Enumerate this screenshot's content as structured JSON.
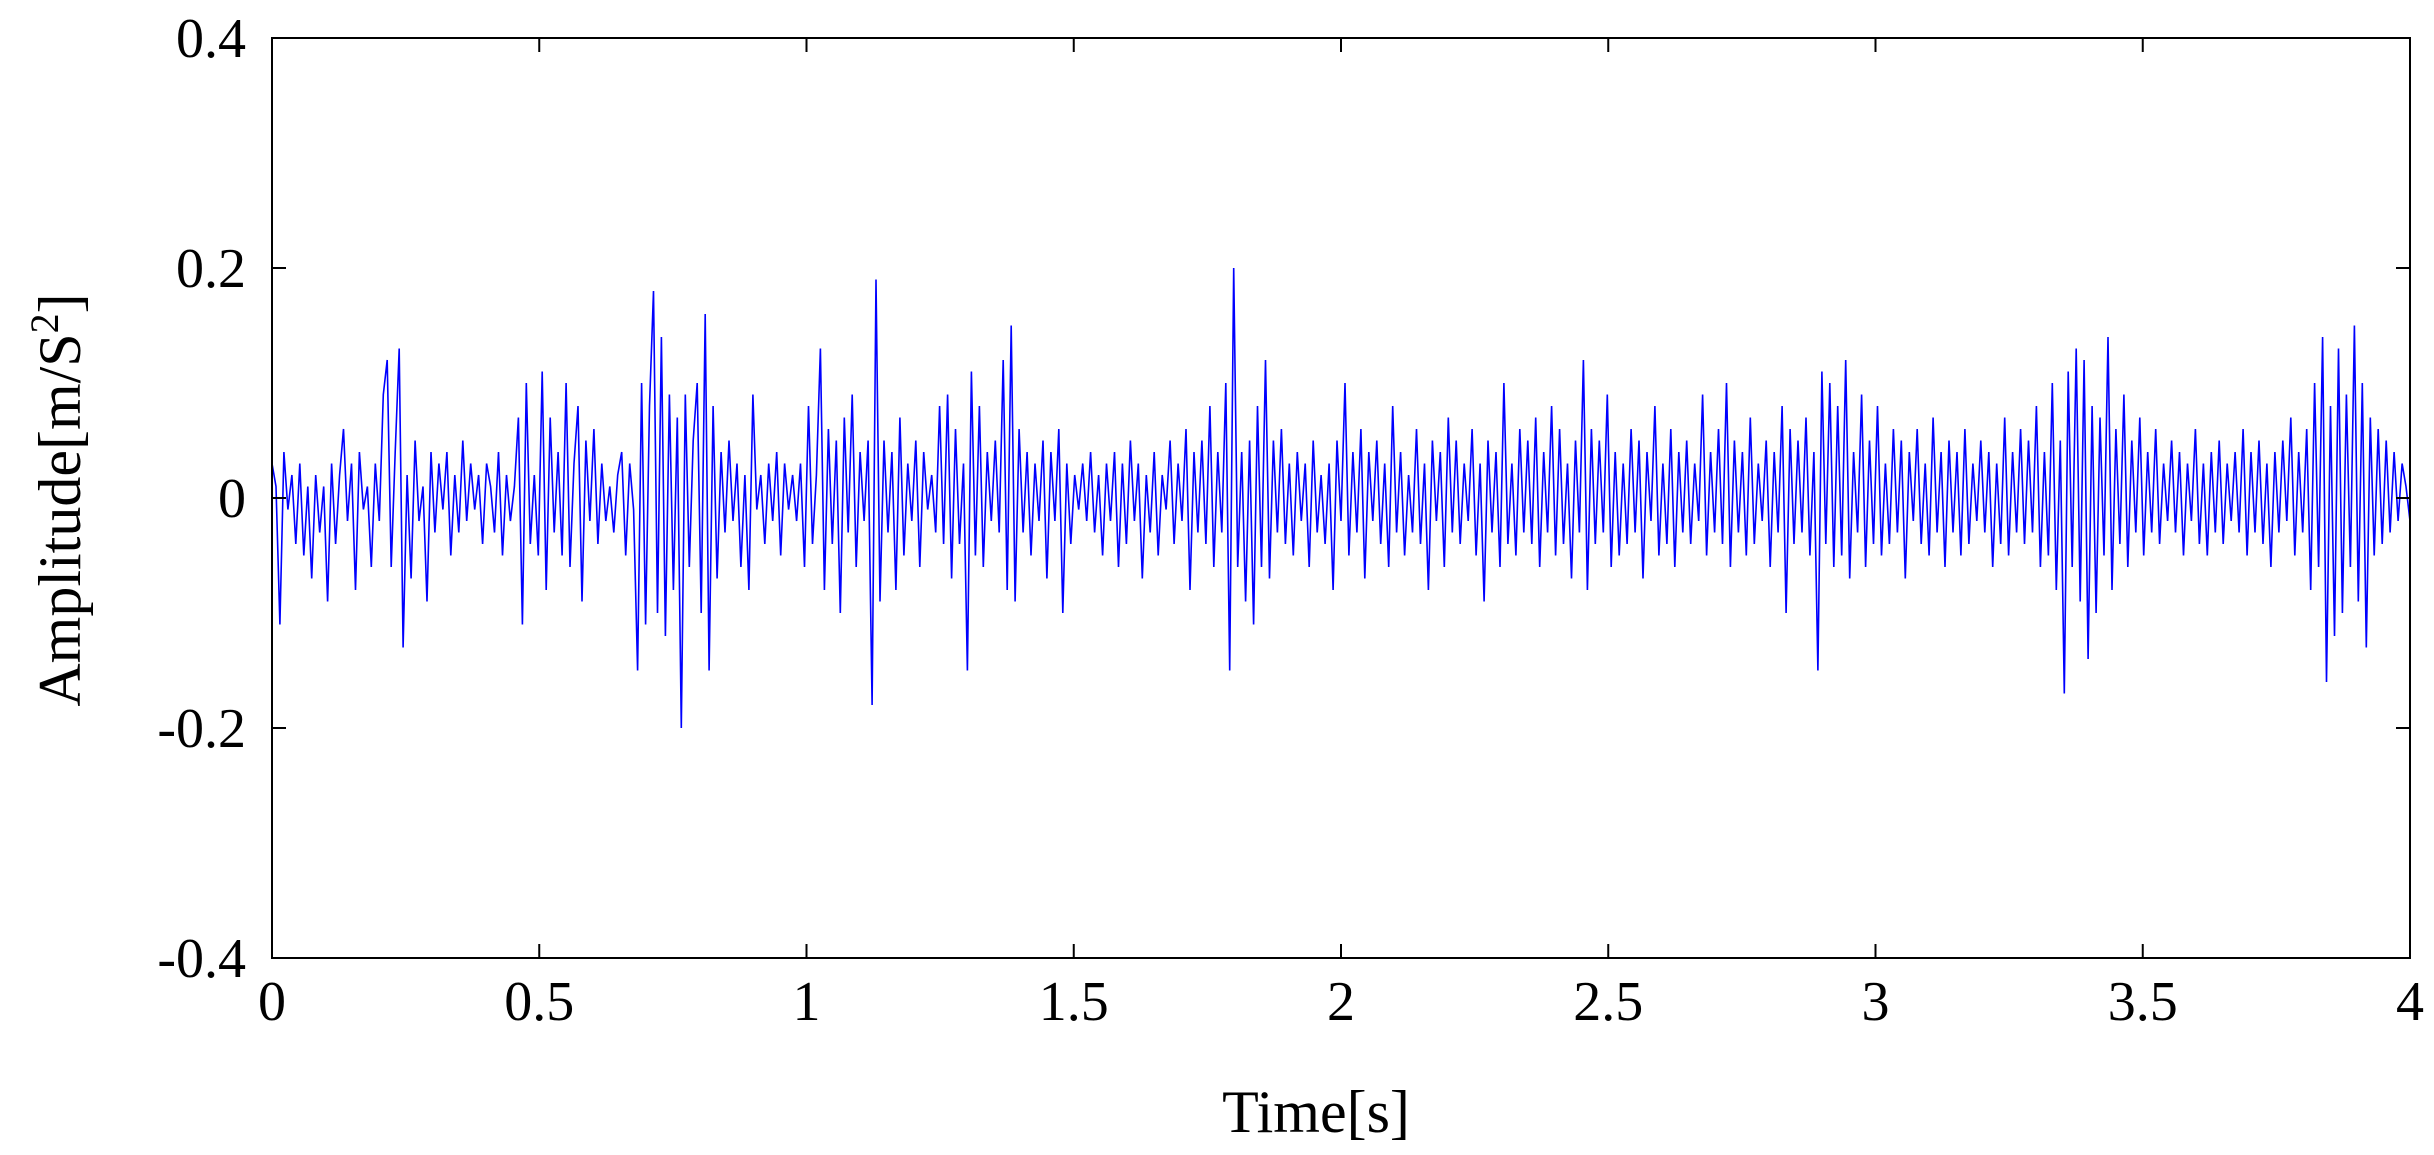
{
  "chart_data": {
    "type": "line",
    "xlabel": "Time[s]",
    "ylabel_main": "Amplitude[m/S",
    "ylabel_sup": "2",
    "ylabel_close": "]",
    "xlim": [
      0,
      4
    ],
    "ylim": [
      -0.4,
      0.4
    ],
    "x_ticks": [
      0,
      0.5,
      1,
      1.5,
      2,
      2.5,
      3,
      3.5,
      4
    ],
    "x_tick_labels": [
      "0",
      "0.5",
      "1",
      "1.5",
      "2",
      "2.5",
      "3",
      "3.5",
      "4"
    ],
    "y_ticks": [
      0.4,
      0.2,
      0,
      -0.2,
      -0.4
    ],
    "y_tick_labels": [
      "0.4",
      "0.2",
      "0",
      "-0.2",
      "-0.4"
    ],
    "grid": false,
    "line_color": "#0000ff",
    "series": [
      {
        "x_start": 0,
        "x_end": 4,
        "values": [
          0.03,
          0.01,
          -0.11,
          0.04,
          -0.01,
          0.02,
          -0.04,
          0.03,
          -0.05,
          0.01,
          -0.07,
          0.02,
          -0.03,
          0.01,
          -0.09,
          0.03,
          -0.04,
          0.02,
          0.06,
          -0.02,
          0.03,
          -0.08,
          0.04,
          -0.01,
          0.01,
          -0.06,
          0.03,
          -0.02,
          0.09,
          0.12,
          -0.06,
          0.04,
          0.13,
          -0.13,
          0.02,
          -0.07,
          0.05,
          -0.02,
          0.01,
          -0.09,
          0.04,
          -0.03,
          0.03,
          -0.01,
          0.04,
          -0.05,
          0.02,
          -0.03,
          0.05,
          -0.02,
          0.03,
          -0.01,
          0.02,
          -0.04,
          0.03,
          0.01,
          -0.03,
          0.04,
          -0.05,
          0.02,
          -0.02,
          0.01,
          0.07,
          -0.11,
          0.1,
          -0.04,
          0.02,
          -0.05,
          0.11,
          -0.08,
          0.07,
          -0.03,
          0.04,
          -0.05,
          0.1,
          -0.06,
          0.03,
          0.08,
          -0.09,
          0.05,
          -0.02,
          0.06,
          -0.04,
          0.03,
          -0.02,
          0.01,
          -0.03,
          0.02,
          0.04,
          -0.05,
          0.03,
          -0.01,
          -0.15,
          0.1,
          -0.11,
          0.08,
          0.18,
          -0.1,
          0.14,
          -0.12,
          0.09,
          -0.08,
          0.07,
          -0.2,
          0.09,
          -0.06,
          0.05,
          0.1,
          -0.1,
          0.16,
          -0.15,
          0.08,
          -0.07,
          0.04,
          -0.03,
          0.05,
          -0.02,
          0.03,
          -0.06,
          0.02,
          -0.08,
          0.09,
          -0.01,
          0.02,
          -0.04,
          0.03,
          -0.02,
          0.04,
          -0.05,
          0.03,
          -0.01,
          0.02,
          -0.02,
          0.03,
          -0.06,
          0.08,
          -0.04,
          0.02,
          0.13,
          -0.08,
          0.06,
          -0.04,
          0.05,
          -0.1,
          0.07,
          -0.03,
          0.09,
          -0.06,
          0.04,
          -0.02,
          0.05,
          -0.18,
          0.19,
          -0.09,
          0.05,
          -0.03,
          0.04,
          -0.08,
          0.07,
          -0.05,
          0.03,
          -0.02,
          0.05,
          -0.06,
          0.04,
          -0.01,
          0.02,
          -0.03,
          0.08,
          -0.04,
          0.09,
          -0.07,
          0.06,
          -0.04,
          0.03,
          -0.15,
          0.11,
          -0.05,
          0.08,
          -0.06,
          0.04,
          -0.02,
          0.05,
          -0.03,
          0.12,
          -0.08,
          0.15,
          -0.09,
          0.06,
          -0.03,
          0.04,
          -0.05,
          0.03,
          -0.02,
          0.05,
          -0.07,
          0.04,
          -0.02,
          0.06,
          -0.1,
          0.03,
          -0.04,
          0.02,
          -0.01,
          0.03,
          -0.02,
          0.04,
          -0.03,
          0.02,
          -0.05,
          0.03,
          -0.02,
          0.04,
          -0.06,
          0.03,
          -0.04,
          0.05,
          -0.02,
          0.03,
          -0.07,
          0.02,
          -0.03,
          0.04,
          -0.05,
          0.02,
          -0.01,
          0.05,
          -0.04,
          0.03,
          -0.02,
          0.06,
          -0.08,
          0.04,
          -0.03,
          0.05,
          -0.04,
          0.08,
          -0.06,
          0.04,
          -0.03,
          0.1,
          -0.15,
          0.2,
          -0.06,
          0.04,
          -0.09,
          0.05,
          -0.11,
          0.08,
          -0.06,
          0.12,
          -0.07,
          0.05,
          -0.03,
          0.06,
          -0.04,
          0.03,
          -0.05,
          0.04,
          -0.02,
          0.03,
          -0.06,
          0.05,
          -0.03,
          0.02,
          -0.04,
          0.03,
          -0.08,
          0.05,
          -0.02,
          0.1,
          -0.05,
          0.04,
          -0.03,
          0.06,
          -0.07,
          0.04,
          -0.02,
          0.05,
          -0.04,
          0.03,
          -0.06,
          0.08,
          -0.03,
          0.04,
          -0.05,
          0.02,
          -0.03,
          0.06,
          -0.04,
          0.03,
          -0.08,
          0.05,
          -0.02,
          0.04,
          -0.06,
          0.07,
          -0.03,
          0.05,
          -0.04,
          0.03,
          -0.02,
          0.06,
          -0.05,
          0.03,
          -0.09,
          0.05,
          -0.03,
          0.04,
          -0.06,
          0.1,
          -0.04,
          0.03,
          -0.05,
          0.06,
          -0.03,
          0.05,
          -0.04,
          0.07,
          -0.06,
          0.04,
          -0.03,
          0.08,
          -0.05,
          0.06,
          -0.04,
          0.03,
          -0.07,
          0.05,
          -0.03,
          0.12,
          -0.08,
          0.06,
          -0.04,
          0.05,
          -0.03,
          0.09,
          -0.06,
          0.04,
          -0.05,
          0.03,
          -0.04,
          0.06,
          -0.03,
          0.05,
          -0.07,
          0.04,
          -0.02,
          0.08,
          -0.05,
          0.03,
          -0.04,
          0.06,
          -0.06,
          0.04,
          -0.03,
          0.05,
          -0.04,
          0.03,
          -0.02,
          0.09,
          -0.05,
          0.04,
          -0.03,
          0.06,
          -0.04,
          0.1,
          -0.06,
          0.05,
          -0.03,
          0.04,
          -0.05,
          0.07,
          -0.04,
          0.03,
          -0.02,
          0.05,
          -0.06,
          0.04,
          -0.03,
          0.08,
          -0.1,
          0.06,
          -0.04,
          0.05,
          -0.03,
          0.07,
          -0.05,
          0.04,
          -0.15,
          0.11,
          -0.04,
          0.1,
          -0.06,
          0.08,
          -0.05,
          0.12,
          -0.07,
          0.04,
          -0.03,
          0.09,
          -0.06,
          0.05,
          -0.04,
          0.08,
          -0.05,
          0.03,
          -0.04,
          0.06,
          -0.03,
          0.05,
          -0.07,
          0.04,
          -0.02,
          0.06,
          -0.04,
          0.03,
          -0.05,
          0.07,
          -0.03,
          0.04,
          -0.06,
          0.05,
          -0.03,
          0.04,
          -0.05,
          0.06,
          -0.04,
          0.03,
          -0.02,
          0.05,
          -0.03,
          0.04,
          -0.06,
          0.03,
          -0.04,
          0.07,
          -0.05,
          0.04,
          -0.03,
          0.06,
          -0.04,
          0.05,
          -0.03,
          0.08,
          -0.06,
          0.04,
          -0.05,
          0.1,
          -0.08,
          0.05,
          -0.17,
          0.11,
          -0.06,
          0.13,
          -0.09,
          0.12,
          -0.14,
          0.08,
          -0.1,
          0.07,
          -0.05,
          0.14,
          -0.08,
          0.06,
          -0.04,
          0.09,
          -0.06,
          0.05,
          -0.03,
          0.07,
          -0.05,
          0.04,
          -0.03,
          0.06,
          -0.04,
          0.03,
          -0.02,
          0.05,
          -0.03,
          0.04,
          -0.05,
          0.03,
          -0.02,
          0.06,
          -0.04,
          0.03,
          -0.05,
          0.04,
          -0.03,
          0.05,
          -0.04,
          0.03,
          -0.02,
          0.04,
          -0.03,
          0.06,
          -0.05,
          0.04,
          -0.03,
          0.05,
          -0.04,
          0.03,
          -0.06,
          0.04,
          -0.03,
          0.05,
          -0.02,
          0.07,
          -0.05,
          0.04,
          -0.03,
          0.06,
          -0.08,
          0.1,
          -0.06,
          0.14,
          -0.16,
          0.08,
          -0.12,
          0.13,
          -0.1,
          0.09,
          -0.06,
          0.15,
          -0.09,
          0.1,
          -0.13,
          0.07,
          -0.05,
          0.06,
          -0.04,
          0.05,
          -0.03,
          0.04,
          -0.02,
          0.03,
          0.01,
          -0.02
        ]
      }
    ]
  }
}
